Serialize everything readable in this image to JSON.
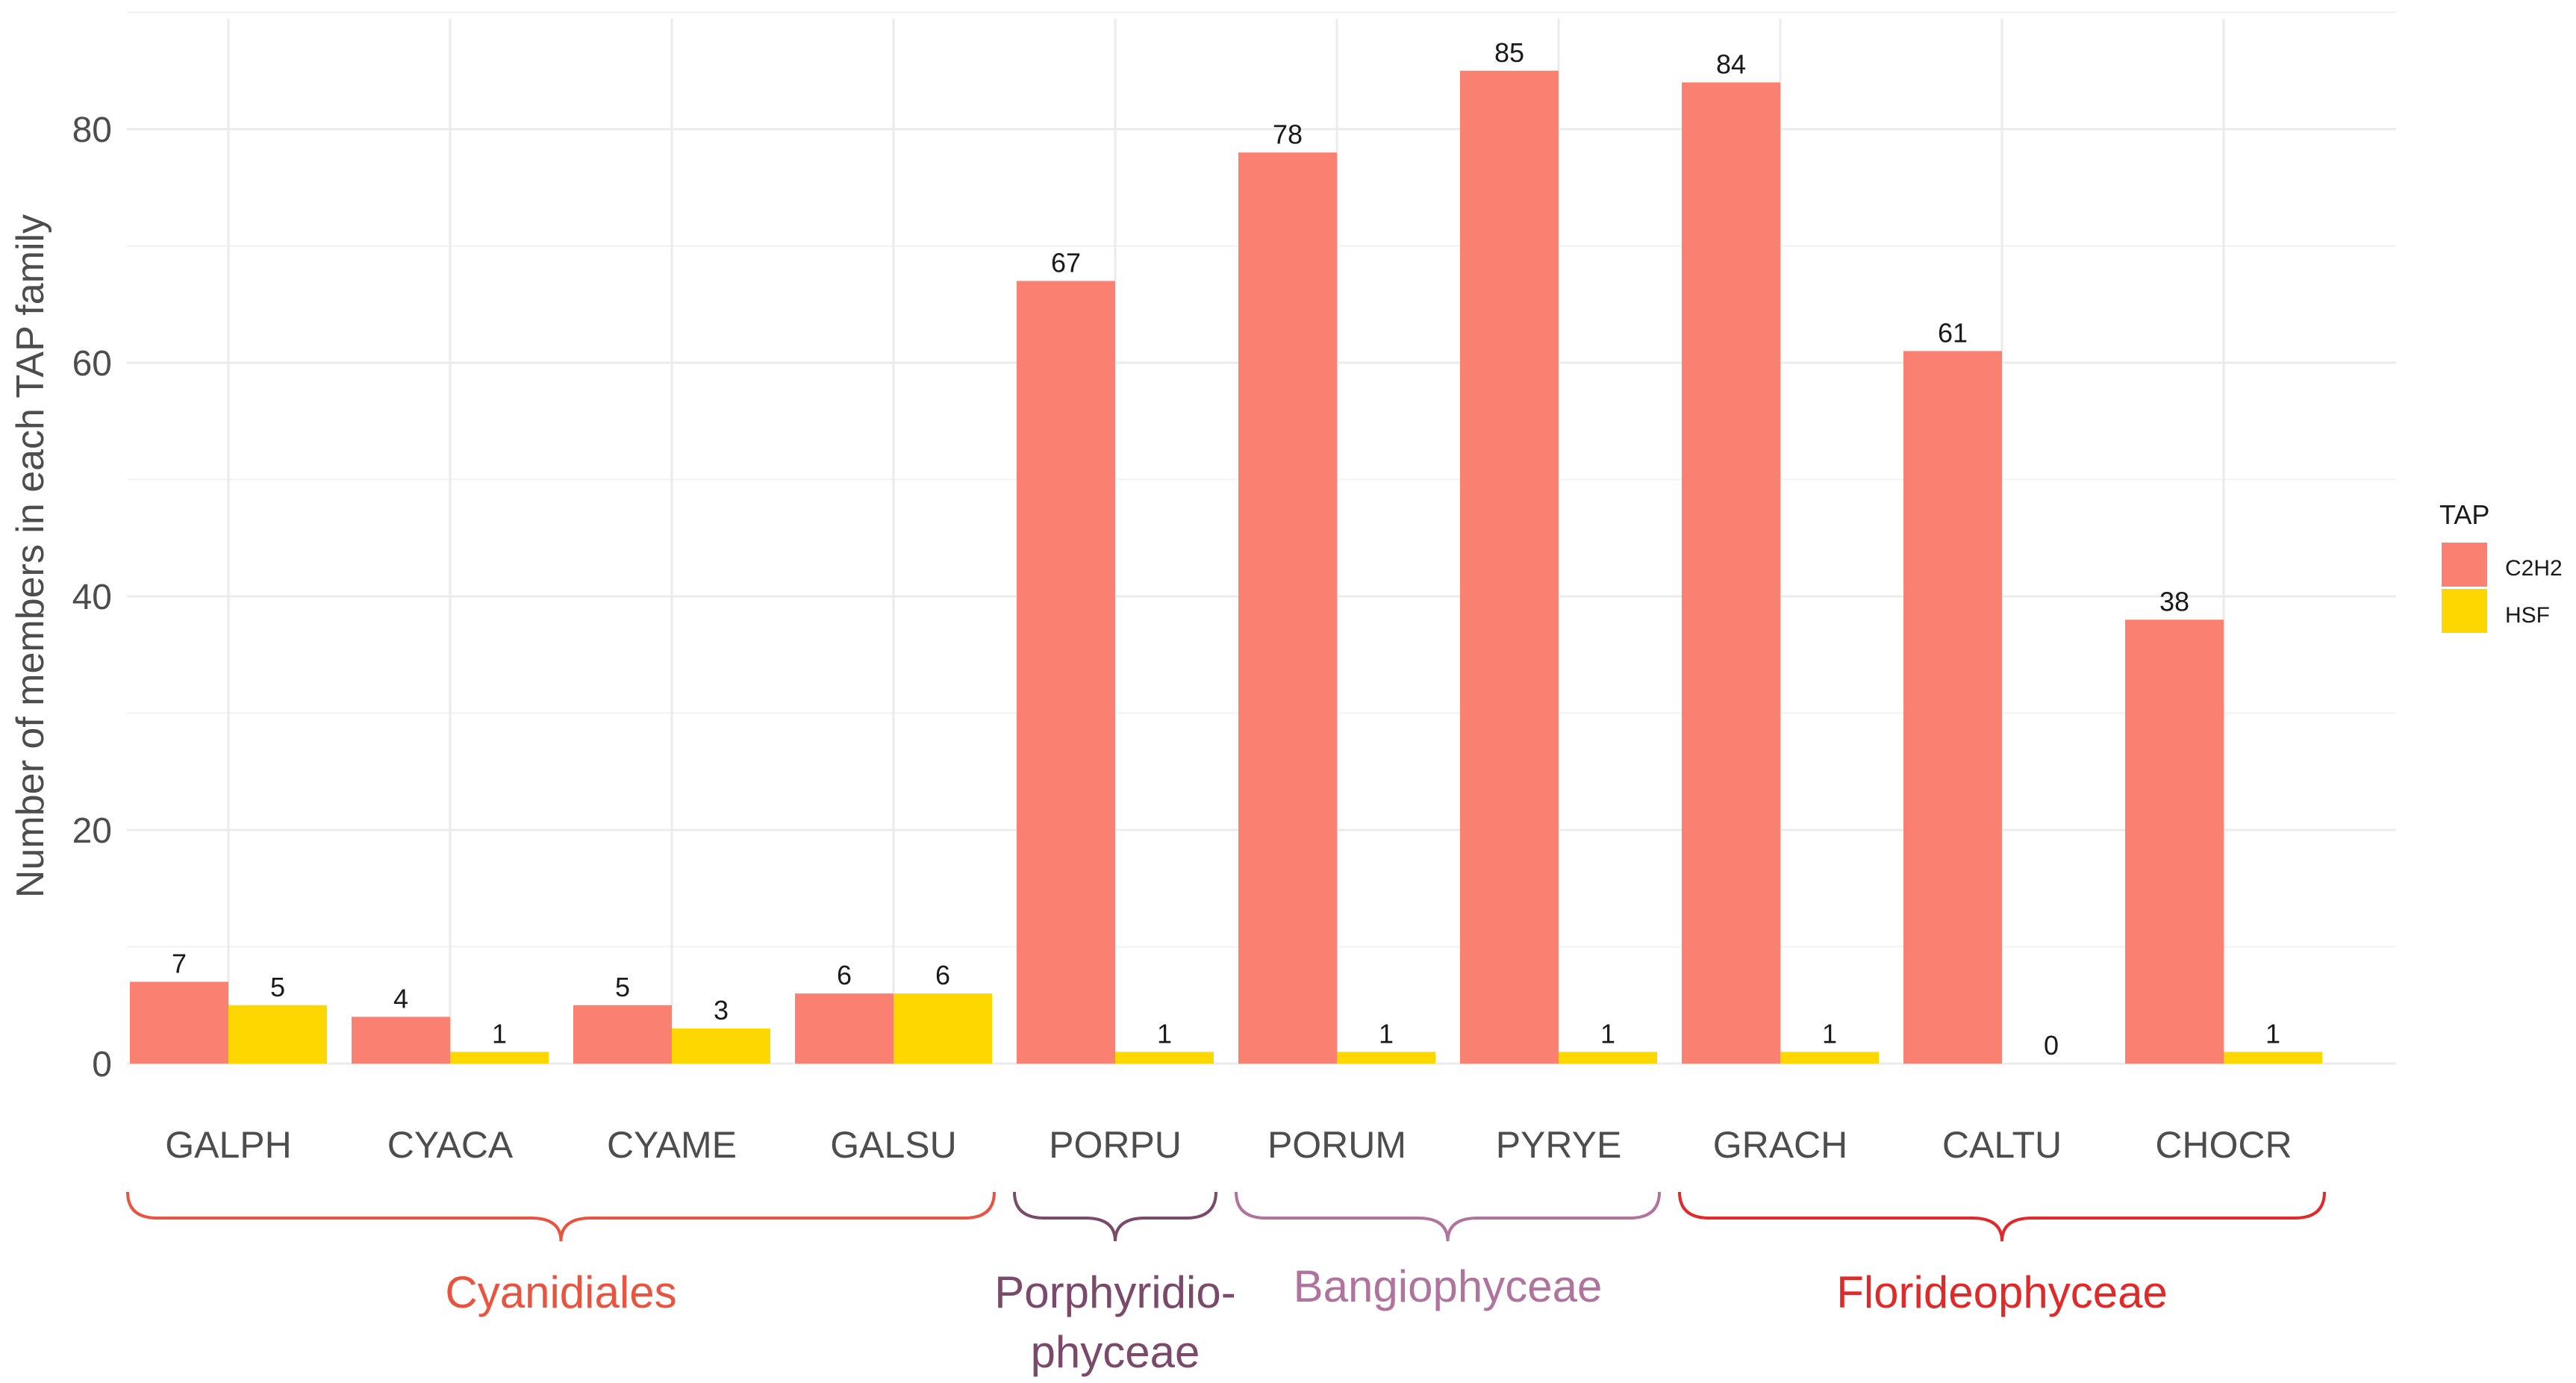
{
  "chart_data": {
    "type": "bar",
    "ylabel": "Number  of members  in each TAP family",
    "xlabel": "",
    "ylim": [
      0,
      90
    ],
    "yticks": [
      0,
      20,
      40,
      60,
      80
    ],
    "grid": true,
    "categories": [
      "GALPH",
      "CYACA",
      "CYAME",
      "GALSU",
      "PORPU",
      "PORUM",
      "PYRYE",
      "GRACH",
      "CALTU",
      "CHOCR"
    ],
    "series": [
      {
        "name": "C2H2",
        "color": "#FA8072",
        "values": [
          7,
          4,
          5,
          6,
          67,
          78,
          85,
          84,
          61,
          38
        ]
      },
      {
        "name": "HSF",
        "color": "#FFD700",
        "values": [
          5,
          1,
          3,
          6,
          1,
          1,
          1,
          1,
          0,
          1
        ]
      }
    ],
    "legend": {
      "title": "TAP",
      "position": "right"
    },
    "groups": [
      {
        "lines": [
          "Cyanidiales"
        ],
        "from": 0,
        "to": 3,
        "color": "#E8543F"
      },
      {
        "lines": [
          "Porphyridio-",
          "phyceae"
        ],
        "from": 4,
        "to": 4,
        "color": "#7B4A6B"
      },
      {
        "lines": [
          "Bangiophyceae"
        ],
        "from": 5,
        "to": 6,
        "color": "#B0739E"
      },
      {
        "lines": [
          "Florideophyceae"
        ],
        "from": 7,
        "to": 9,
        "color": "#E02A2A"
      }
    ]
  }
}
